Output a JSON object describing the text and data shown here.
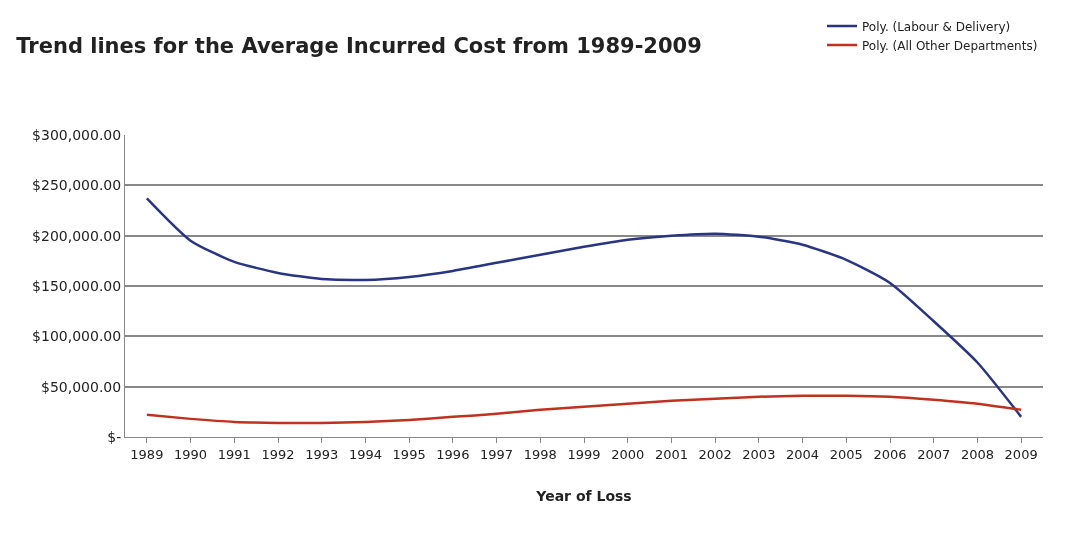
{
  "chart_data": {
    "type": "line",
    "title": "Trend lines for the Average Incurred Cost from 1989-2009",
    "xlabel": "Year of Loss",
    "categories": [
      "1989",
      "1990",
      "1991",
      "1992",
      "1993",
      "1994",
      "1995",
      "1996",
      "1997",
      "1998",
      "1999",
      "2000",
      "2001",
      "2002",
      "2003",
      "2004",
      "2005",
      "2006",
      "2007",
      "2008",
      "2009"
    ],
    "series": [
      {
        "name": "Poly. (Labour & Delivery)",
        "color": "#283583",
        "values": [
          237000,
          195000,
          174000,
          163000,
          157000,
          156000,
          159000,
          165000,
          173000,
          181000,
          189000,
          196000,
          200000,
          202000,
          199000,
          191000,
          176000,
          153000,
          115000,
          74000,
          20000
        ]
      },
      {
        "name": "Poly. (All Other Departments)",
        "color": "#c0311f",
        "values": [
          22000,
          18000,
          15000,
          14000,
          14000,
          15000,
          17000,
          20000,
          23000,
          27000,
          30000,
          33000,
          36000,
          38000,
          40000,
          41000,
          41000,
          40000,
          37000,
          33000,
          27000
        ]
      }
    ],
    "ylim": [
      0,
      300000
    ],
    "yticks": [
      {
        "value": 0,
        "label": "$-"
      },
      {
        "value": 50000,
        "label": "$50,000.00"
      },
      {
        "value": 100000,
        "label": "$100,000.00"
      },
      {
        "value": 150000,
        "label": "$150,000.00"
      },
      {
        "value": 200000,
        "label": "$200,000.00"
      },
      {
        "value": 250000,
        "label": "$250,000.00"
      },
      {
        "value": 300000,
        "label": "$300,000.00"
      }
    ],
    "grid": "y",
    "legend": "top right",
    "marker": "none",
    "line_style": "solid"
  }
}
